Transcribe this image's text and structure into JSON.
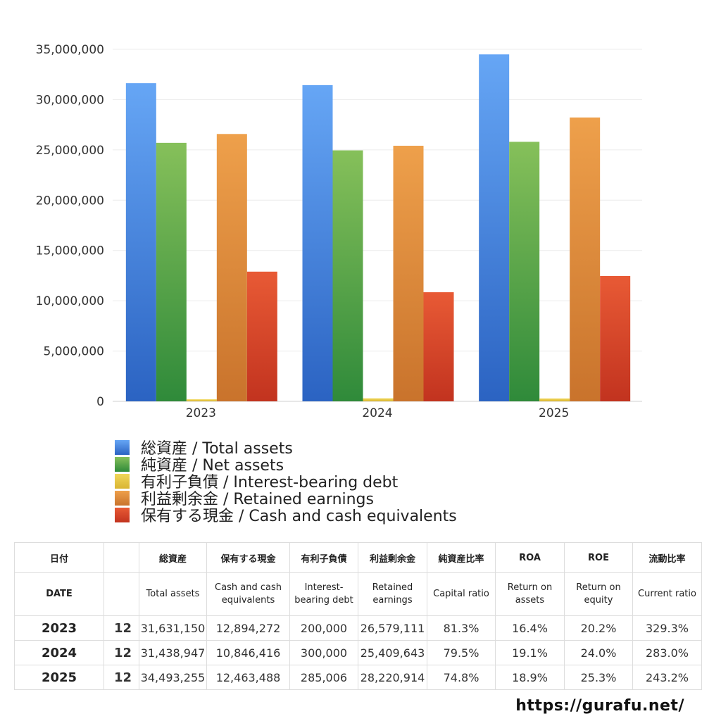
{
  "chart_data": {
    "type": "bar",
    "categories": [
      "2023",
      "2024",
      "2025"
    ],
    "ylim": [
      0,
      35000000
    ],
    "yticks": [
      "0",
      "5,000,000",
      "10,000,000",
      "15,000,000",
      "20,000,000",
      "25,000,000",
      "30,000,000",
      "35,000,000"
    ],
    "grid": true,
    "legend_position": "bottom",
    "series": [
      {
        "name": "総資産 / Total assets",
        "values": [
          31631150,
          31438947,
          34493255
        ],
        "color_top": "#66a6f5",
        "color_bottom": "#2b63c2"
      },
      {
        "name": "純資産 / Net assets",
        "values": [
          25700000,
          24950000,
          25800000
        ],
        "color_top": "#86c05a",
        "color_bottom": "#2f8a3a"
      },
      {
        "name": "有利子負債 / Interest-bearing debt",
        "values": [
          200000,
          300000,
          285006
        ],
        "color_top": "#f1d75a",
        "color_bottom": "#d9b532"
      },
      {
        "name": "利益剰余金 / Retained earnings",
        "values": [
          26579111,
          25409643,
          28220914
        ],
        "color_top": "#eea04b",
        "color_bottom": "#c9732c"
      },
      {
        "name": "保有する現金 /  Cash and cash equivalents",
        "values": [
          12894272,
          10846416,
          12463488
        ],
        "color_top": "#e85a35",
        "color_bottom": "#c2331f"
      }
    ]
  },
  "table": {
    "header_jp": [
      "日付",
      "",
      "総資産",
      "保有する現金",
      "有利子負債",
      "利益剰余金",
      "純資産比率",
      "ROA",
      "ROE",
      "流動比率"
    ],
    "header_en": [
      "DATE",
      "",
      "Total assets",
      "Cash and cash equivalents",
      "Interest-bearing debt",
      "Retained earnings",
      "Capital ratio",
      "Return on assets",
      "Return on equity",
      "Current ratio"
    ],
    "rows": [
      [
        "2023",
        "12",
        "31,631,150",
        "12,894,272",
        "200,000",
        "26,579,111",
        "81.3%",
        "16.4%",
        "20.2%",
        "329.3%"
      ],
      [
        "2024",
        "12",
        "31,438,947",
        "10,846,416",
        "300,000",
        "25,409,643",
        "79.5%",
        "19.1%",
        "24.0%",
        "283.0%"
      ],
      [
        "2025",
        "12",
        "34,493,255",
        "12,463,488",
        "285,006",
        "28,220,914",
        "74.8%",
        "18.9%",
        "25.3%",
        "243.2%"
      ]
    ]
  },
  "footer": {
    "site": "https://gurafu.net/"
  }
}
